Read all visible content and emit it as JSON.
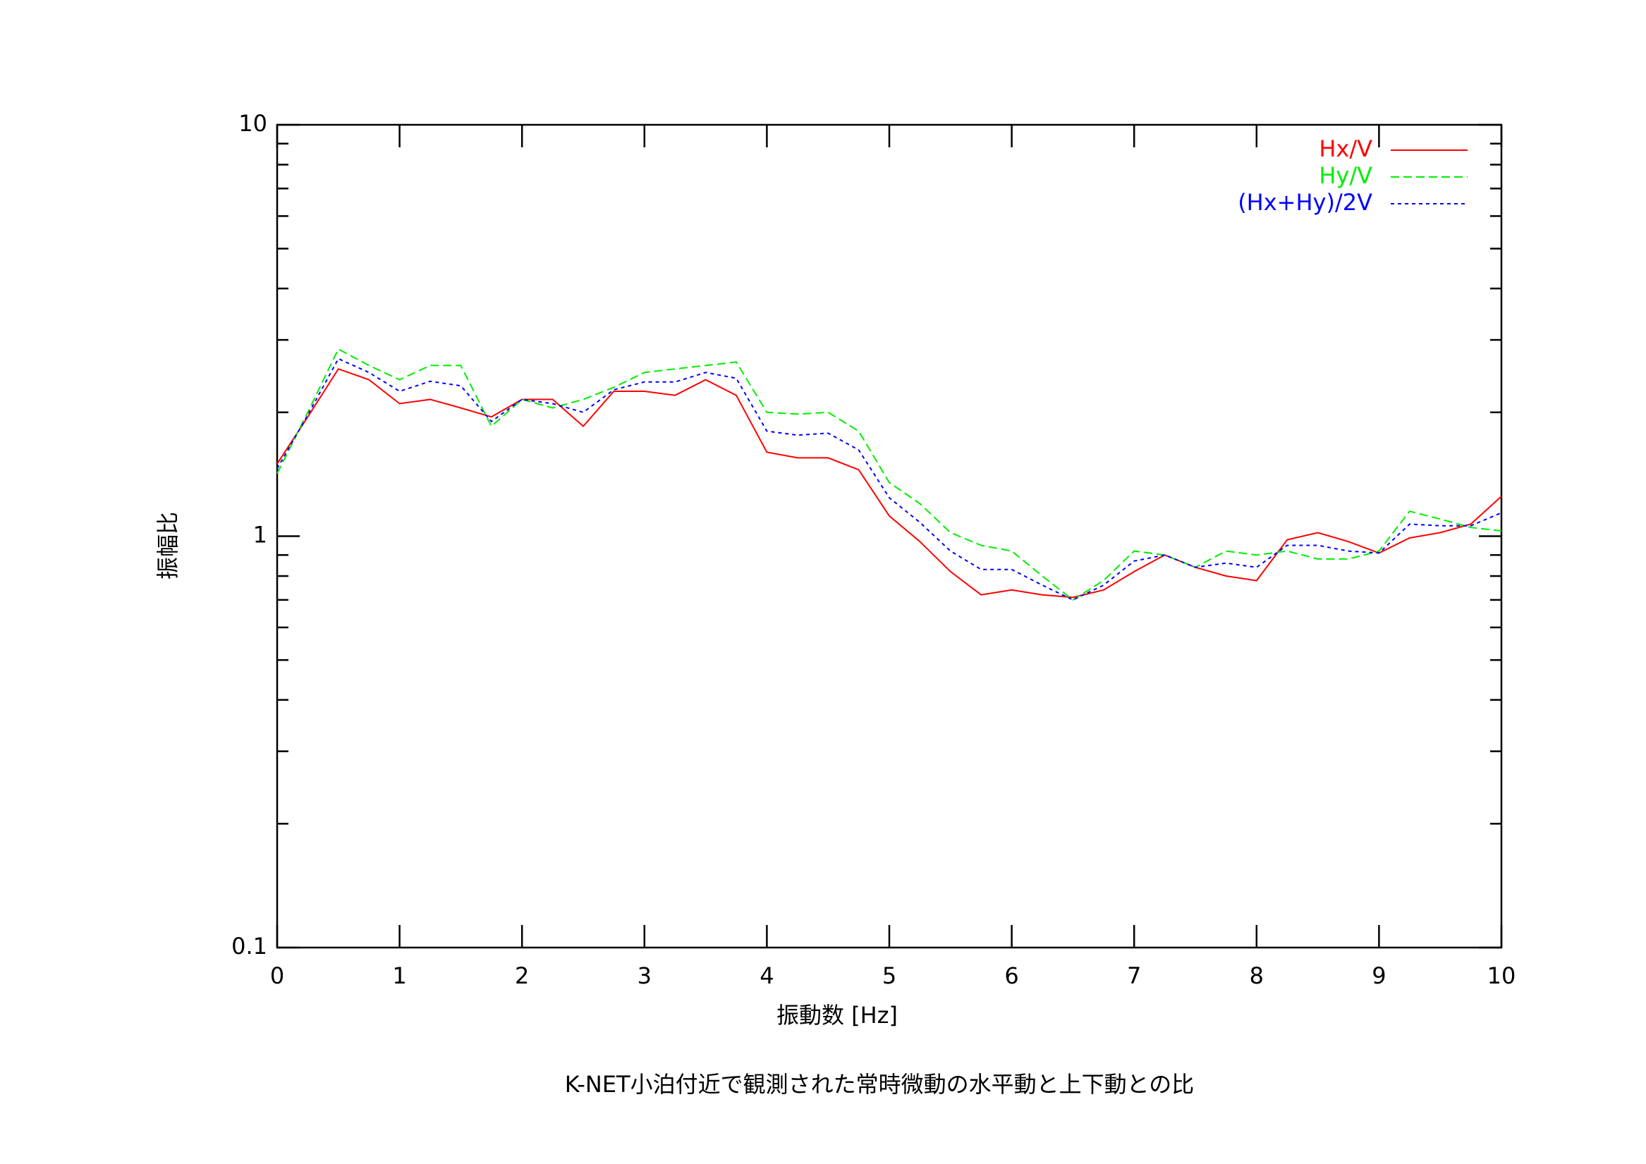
{
  "chart_data": {
    "type": "line",
    "title": "K-NET小泊付近で観測された常時微動の水平動と上下動との比",
    "x_label": "振動数 [Hz]",
    "y_label": "振幅比",
    "x": [
      0,
      0.25,
      0.5,
      0.75,
      1,
      1.25,
      1.5,
      1.75,
      2,
      2.25,
      2.5,
      2.75,
      3,
      3.25,
      3.5,
      3.75,
      4,
      4.25,
      4.5,
      4.75,
      5,
      5.25,
      5.5,
      5.75,
      6,
      6.25,
      6.5,
      6.75,
      7,
      7.25,
      7.5,
      7.75,
      8,
      8.25,
      8.5,
      8.75,
      9,
      9.25,
      9.5,
      9.75,
      10
    ],
    "series": [
      {
        "name": "Hx/V",
        "color": "#ff0000",
        "dash": "none",
        "values": [
          1.5,
          1.95,
          2.55,
          2.4,
          2.1,
          2.15,
          2.05,
          1.95,
          2.15,
          2.15,
          1.85,
          2.25,
          2.25,
          2.2,
          2.4,
          2.2,
          1.6,
          1.55,
          1.55,
          1.45,
          1.12,
          0.97,
          0.82,
          0.72,
          0.74,
          0.72,
          0.71,
          0.74,
          0.82,
          0.9,
          0.84,
          0.8,
          0.78,
          0.98,
          1.02,
          0.97,
          0.91,
          0.99,
          1.02,
          1.07,
          1.25
        ]
      },
      {
        "name": "Hy/V",
        "color": "#00ee00",
        "dash": "12 6",
        "values": [
          1.42,
          2.0,
          2.85,
          2.6,
          2.4,
          2.6,
          2.6,
          1.85,
          2.15,
          2.05,
          2.15,
          2.3,
          2.5,
          2.55,
          2.6,
          2.65,
          2.0,
          1.98,
          2.0,
          1.8,
          1.35,
          1.2,
          1.02,
          0.95,
          0.92,
          0.8,
          0.7,
          0.78,
          0.92,
          0.9,
          0.84,
          0.92,
          0.9,
          0.92,
          0.88,
          0.88,
          0.92,
          1.15,
          1.1,
          1.05,
          1.03
        ]
      },
      {
        "name": "(Hx+Hy)/2V",
        "color": "#0000ff",
        "dash": "5 5",
        "values": [
          1.46,
          1.97,
          2.7,
          2.5,
          2.25,
          2.38,
          2.32,
          1.9,
          2.15,
          2.1,
          2.0,
          2.27,
          2.37,
          2.37,
          2.5,
          2.42,
          1.8,
          1.76,
          1.78,
          1.62,
          1.24,
          1.08,
          0.92,
          0.83,
          0.83,
          0.76,
          0.7,
          0.76,
          0.87,
          0.9,
          0.84,
          0.86,
          0.84,
          0.95,
          0.95,
          0.92,
          0.91,
          1.07,
          1.06,
          1.06,
          1.14
        ]
      }
    ],
    "xlim": [
      0,
      10
    ],
    "xticks": [
      0,
      1,
      2,
      3,
      4,
      5,
      6,
      7,
      8,
      9,
      10
    ],
    "ylim": [
      0.1,
      10
    ],
    "yticks": [
      0.1,
      1,
      10
    ],
    "ylog": true,
    "minor_yticks": [
      0.2,
      0.3,
      0.4,
      0.5,
      0.6,
      0.7,
      0.8,
      0.9,
      2,
      3,
      4,
      5,
      6,
      7,
      8,
      9
    ],
    "legend": "top-right"
  }
}
